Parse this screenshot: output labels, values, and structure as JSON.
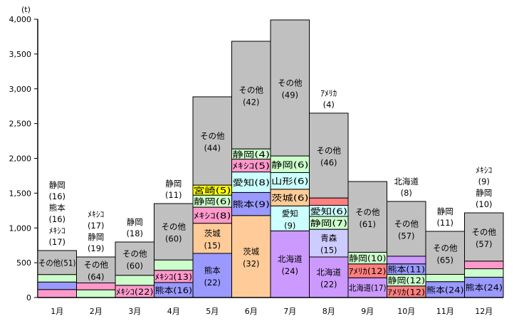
{
  "chart_data": {
    "type": "bar",
    "stacked": true,
    "title": "",
    "ylabel": "(t)",
    "xlabel": "",
    "ylim": [
      0,
      4000
    ],
    "yticks": [
      0,
      500,
      1000,
      1500,
      2000,
      2500,
      3000,
      3500,
      4000
    ],
    "ytick_labels": [
      "0",
      "500",
      "1,000",
      "1,500",
      "2,000",
      "2,500",
      "3,000",
      "3,500",
      "4,000"
    ],
    "grid": false,
    "categories": [
      "1月",
      "2月",
      "3月",
      "4月",
      "5月",
      "6月",
      "7月",
      "8月",
      "9月",
      "10月",
      "11月",
      "12月"
    ],
    "totals": [
      675,
      583,
      798,
      1350,
      2885,
      3683,
      3990,
      2650,
      1667,
      1381,
      951,
      1217
    ],
    "colors": {
      "静岡": "#ccffcc",
      "熊本": "#9999ff",
      "メキシコ": "#ff99cc",
      "茨城": "#ffcc99",
      "宮崎": "#ffff00",
      "愛知": "#ccffff",
      "山形": "#ccffff",
      "北海道": "#cc99ff",
      "青森": "#ccccff",
      "アメリカ": "#ff8080",
      "その他": "#c0c0c0"
    },
    "segments": [
      [
        {
          "origin": "メキシコ",
          "label": "ﾒｷｼｺ",
          "share": 17,
          "outside": true
        },
        {
          "origin": "熊本",
          "label": "熊本",
          "share": 16,
          "outside": true
        },
        {
          "origin": "静岡",
          "label": "静岡",
          "share": 16,
          "outside": true
        },
        {
          "origin": "その他",
          "label": "その他",
          "share": 51
        }
      ],
      [
        {
          "origin": "静岡",
          "label": "静岡",
          "share": 19,
          "outside": true
        },
        {
          "origin": "メキシコ",
          "label": "ﾒｷｼｺ",
          "share": 17,
          "outside": true
        },
        {
          "origin": "その他",
          "label": "その他",
          "share": 64
        }
      ],
      [
        {
          "origin": "メキシコ",
          "label": "ﾒｷｼｺ",
          "share": 22
        },
        {
          "origin": "静岡",
          "label": "静岡",
          "share": 18,
          "outside": true
        },
        {
          "origin": "その他",
          "label": "その他",
          "share": 60
        }
      ],
      [
        {
          "origin": "熊本",
          "label": "熊本",
          "share": 16
        },
        {
          "origin": "メキシコ",
          "label": "ﾒｷｼｺ",
          "share": 13
        },
        {
          "origin": "静岡",
          "label": "静岡",
          "share": 11,
          "outside": true
        },
        {
          "origin": "その他",
          "label": "その他",
          "share": 60
        }
      ],
      [
        {
          "origin": "熊本",
          "label": "熊本",
          "share": 22
        },
        {
          "origin": "茨城",
          "label": "茨城",
          "share": 15
        },
        {
          "origin": "メキシコ",
          "label": "ﾒｷｼｺ",
          "share": 8
        },
        {
          "origin": "静岡",
          "label": "静岡",
          "share": 6
        },
        {
          "origin": "宮崎",
          "label": "宮崎",
          "share": 5
        },
        {
          "origin": "その他",
          "label": "その他",
          "share": 44
        }
      ],
      [
        {
          "origin": "茨城",
          "label": "茨城",
          "share": 32
        },
        {
          "origin": "熊本",
          "label": "熊本",
          "share": 9
        },
        {
          "origin": "愛知",
          "label": "愛知",
          "share": 8
        },
        {
          "origin": "メキシコ",
          "label": "ﾒｷｼｺ",
          "share": 5
        },
        {
          "origin": "静岡",
          "label": "静岡",
          "share": 4
        },
        {
          "origin": "その他",
          "label": "その他",
          "share": 42
        }
      ],
      [
        {
          "origin": "北海道",
          "label": "北海道",
          "share": 24
        },
        {
          "origin": "愛知",
          "label": "愛知",
          "share": 9
        },
        {
          "origin": "茨城",
          "label": "茨城",
          "share": 6
        },
        {
          "origin": "山形",
          "label": "山形",
          "share": 6
        },
        {
          "origin": "静岡",
          "label": "静岡",
          "share": 6
        },
        {
          "origin": "その他",
          "label": "その他",
          "share": 49
        }
      ],
      [
        {
          "origin": "北海道",
          "label": "北海道",
          "share": 22
        },
        {
          "origin": "青森",
          "label": "青森",
          "share": 15
        },
        {
          "origin": "静岡",
          "label": "静岡",
          "share": 7
        },
        {
          "origin": "愛知",
          "label": "愛知",
          "share": 6
        },
        {
          "origin": "アメリカ",
          "label": "ｱﾒﾘｶ",
          "share": 4,
          "outside": true
        },
        {
          "origin": "その他",
          "label": "その他",
          "share": 46
        }
      ],
      [
        {
          "origin": "北海道",
          "label": "北海道",
          "share": 17
        },
        {
          "origin": "アメリカ",
          "label": "ｱﾒﾘｶ",
          "share": 12
        },
        {
          "origin": "静岡",
          "label": "静岡",
          "share": 10
        },
        {
          "origin": "その他",
          "label": "その他",
          "share": 61
        }
      ],
      [
        {
          "origin": "アメリカ",
          "label": "ｱﾒﾘｶ",
          "share": 12
        },
        {
          "origin": "静岡",
          "label": "静岡",
          "share": 12
        },
        {
          "origin": "熊本",
          "label": "熊本",
          "share": 11
        },
        {
          "origin": "北海道",
          "label": "北海道",
          "share": 8,
          "outside": true
        },
        {
          "origin": "その他",
          "label": "その他",
          "share": 57
        }
      ],
      [
        {
          "origin": "熊本",
          "label": "熊本",
          "share": 24
        },
        {
          "origin": "静岡",
          "label": "静岡",
          "share": 11,
          "outside": true
        },
        {
          "origin": "その他",
          "label": "その他",
          "share": 65
        }
      ],
      [
        {
          "origin": "熊本",
          "label": "熊本",
          "share": 24
        },
        {
          "origin": "静岡",
          "label": "静岡",
          "share": 10,
          "outside": true
        },
        {
          "origin": "メキシコ",
          "label": "ﾒｷｼｺ",
          "share": 9,
          "outside": true
        },
        {
          "origin": "その他",
          "label": "その他",
          "share": 57
        }
      ]
    ]
  }
}
